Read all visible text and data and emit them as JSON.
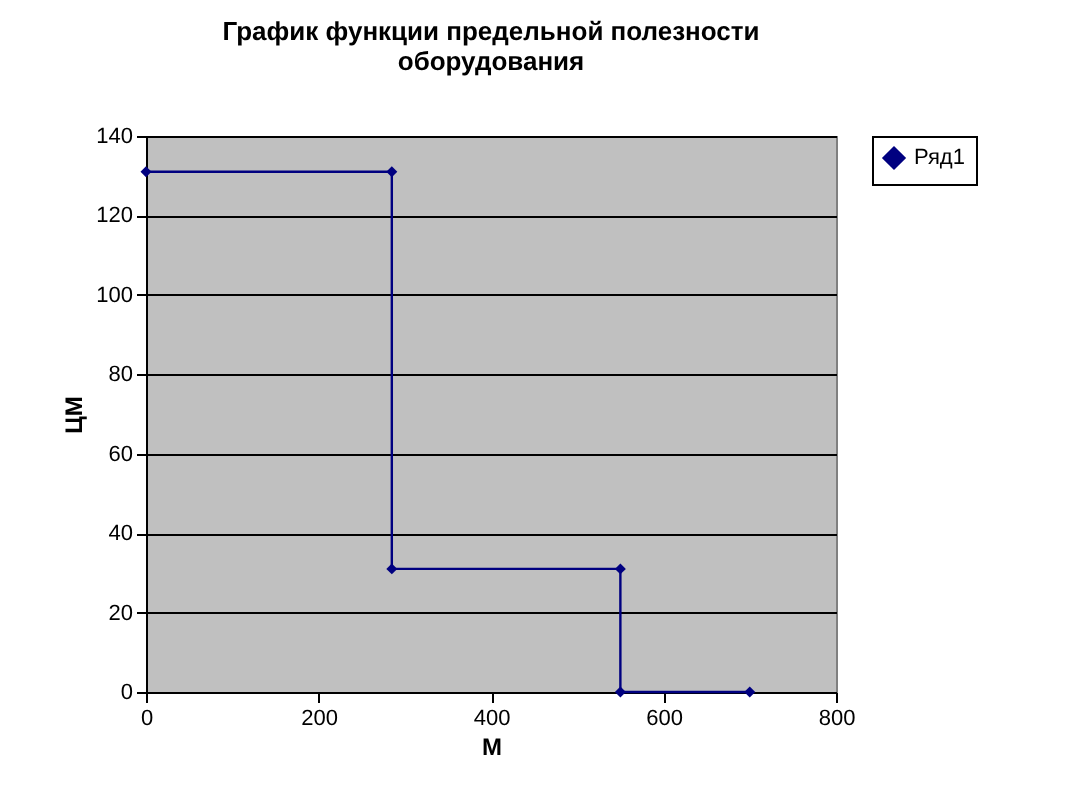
{
  "chart_data": {
    "type": "line",
    "title": "График функции предельной полезности оборудования",
    "xlabel": "М",
    "ylabel": "ЦМ",
    "x": [
      0,
      285,
      285,
      550,
      550,
      700
    ],
    "series": [
      {
        "name": "Ряд1",
        "color": "#000080",
        "values": [
          131,
          131,
          31,
          31,
          0,
          0
        ]
      }
    ],
    "xlim": [
      0,
      800
    ],
    "xticks": [
      0,
      200,
      400,
      600,
      800
    ],
    "ylim": [
      0,
      140
    ],
    "yticks": [
      0,
      20,
      40,
      60,
      80,
      100,
      120,
      140
    ],
    "grid": "y",
    "legend": "right",
    "marker": "diamond",
    "line_style": "solid"
  }
}
